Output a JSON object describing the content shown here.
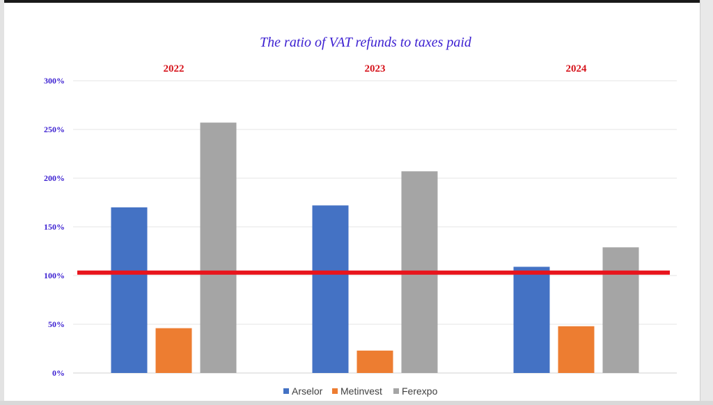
{
  "chart_data": {
    "type": "bar",
    "title": "The ratio of VAT refunds to taxes paid",
    "categories": [
      "2022",
      "2023",
      "2024"
    ],
    "series": [
      {
        "name": "Arselor",
        "color": "#4472c4",
        "values": [
          170,
          172,
          109
        ]
      },
      {
        "name": "Metinvest",
        "color": "#ed7d31",
        "values": [
          46,
          23,
          48
        ]
      },
      {
        "name": "Ferexpo",
        "color": "#a5a5a5",
        "values": [
          257,
          207,
          129
        ]
      }
    ],
    "yticks": [
      "0%",
      "50%",
      "100%",
      "150%",
      "200%",
      "250%",
      "300%"
    ],
    "ylim": [
      0,
      300
    ],
    "reference_line": {
      "value": 103,
      "color": "#e8141c"
    },
    "grid": true,
    "legend": "bottom",
    "colors": {
      "title": "#3b1fd1",
      "year_labels": "#d6141c",
      "tick_labels": "#3b1fd1"
    }
  }
}
